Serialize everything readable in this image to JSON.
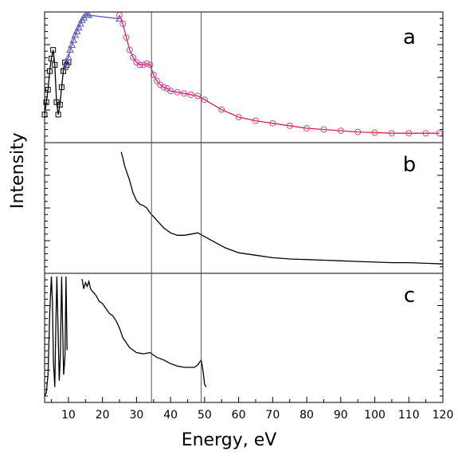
{
  "chart_data": {
    "type": "line",
    "xlabel": "Energy, eV",
    "ylabel": "Intensity",
    "xlim": [
      3,
      120
    ],
    "x_ticks": [
      10,
      20,
      30,
      40,
      50,
      60,
      70,
      80,
      90,
      100,
      110,
      120
    ],
    "reference_lines_x": [
      34.4,
      49
    ],
    "grid": false,
    "panels": [
      {
        "label": "a",
        "series": [
          {
            "marker": "square",
            "color": "#000000",
            "x": [
              3,
              3.5,
              4,
              4.5,
              5,
              5.5,
              6,
              6.5,
              7,
              7.5,
              8,
              8.5,
              9,
              9.5,
              10
            ],
            "y": [
              0.2,
              0.3,
              0.4,
              0.55,
              0.65,
              0.72,
              0.6,
              0.3,
              0.2,
              0.28,
              0.42,
              0.55,
              0.62,
              0.6,
              0.62
            ]
          },
          {
            "marker": "triangle",
            "color": "#5555bb",
            "x": [
              9,
              9.5,
              10,
              10.5,
              11,
              11.5,
              12,
              12.5,
              13,
              13.5,
              14,
              14.5,
              15,
              15.5,
              16,
              25
            ],
            "y": [
              0.58,
              0.62,
              0.66,
              0.72,
              0.76,
              0.8,
              0.84,
              0.87,
              0.9,
              0.93,
              0.96,
              0.98,
              1.0,
              1.0,
              1.0,
              0.97
            ]
          },
          {
            "marker": "circle",
            "color": "#cc44aa",
            "x": [
              25,
              26,
              27,
              28,
              29,
              30,
              31,
              32,
              33,
              34,
              35,
              36,
              37,
              38,
              39,
              40,
              42,
              44,
              46,
              48,
              50,
              55,
              60,
              65,
              70,
              75,
              80,
              85,
              90,
              95,
              100,
              105,
              110,
              115,
              119
            ],
            "y": [
              1.0,
              0.93,
              0.82,
              0.72,
              0.66,
              0.62,
              0.6,
              0.6,
              0.61,
              0.6,
              0.52,
              0.47,
              0.44,
              0.42,
              0.41,
              0.39,
              0.38,
              0.37,
              0.36,
              0.35,
              0.32,
              0.24,
              0.18,
              0.15,
              0.13,
              0.11,
              0.09,
              0.08,
              0.07,
              0.06,
              0.055,
              0.05,
              0.05,
              0.05,
              0.05
            ]
          }
        ]
      },
      {
        "label": "b",
        "series": [
          {
            "color": "#000000",
            "x": [
              25.5,
              26,
              26.5,
              27,
              28,
              29,
              30,
              31,
              32,
              33,
              34,
              35,
              36,
              37,
              38,
              39,
              40,
              42,
              44,
              46,
              48,
              50,
              52,
              54,
              56,
              58,
              60,
              65,
              70,
              75,
              80,
              85,
              90,
              95,
              100,
              105,
              110,
              115,
              120
            ],
            "y": [
              0.95,
              0.9,
              0.84,
              0.8,
              0.72,
              0.62,
              0.56,
              0.53,
              0.52,
              0.5,
              0.46,
              0.43,
              0.4,
              0.37,
              0.34,
              0.32,
              0.3,
              0.28,
              0.28,
              0.29,
              0.3,
              0.27,
              0.24,
              0.21,
              0.18,
              0.16,
              0.14,
              0.12,
              0.1,
              0.09,
              0.085,
              0.08,
              0.075,
              0.07,
              0.065,
              0.06,
              0.06,
              0.055,
              0.05
            ]
          }
        ]
      },
      {
        "label": "c",
        "series": [
          {
            "color": "#000000",
            "x": [
              3,
              3.5,
              4,
              4.5,
              5,
              5.3,
              5.6,
              6,
              6.3,
              6.6,
              7,
              7.3,
              7.6,
              8,
              8.3,
              8.6,
              9,
              9.3,
              9.6
            ],
            "y": [
              0.03,
              0.05,
              0.2,
              0.7,
              1.0,
              0.8,
              0.3,
              0.1,
              0.6,
              1.0,
              0.5,
              0.15,
              0.35,
              1.0,
              0.6,
              0.2,
              0.35,
              1.0,
              0.4
            ]
          },
          {
            "color": "#000000",
            "x": [
              14,
              14.5,
              15,
              15.5,
              16,
              16.5,
              17,
              18,
              19,
              20,
              21,
              22,
              23,
              24,
              25,
              26,
              27,
              28,
              29,
              30,
              32,
              34,
              35,
              36,
              38,
              40,
              42,
              44,
              46,
              47,
              48,
              49,
              49.5,
              50,
              50.5
            ],
            "y": [
              0.98,
              0.9,
              0.95,
              0.92,
              0.96,
              0.9,
              0.88,
              0.85,
              0.8,
              0.78,
              0.74,
              0.7,
              0.68,
              0.64,
              0.58,
              0.5,
              0.46,
              0.42,
              0.4,
              0.38,
              0.37,
              0.38,
              0.36,
              0.34,
              0.32,
              0.29,
              0.27,
              0.26,
              0.26,
              0.26,
              0.28,
              0.32,
              0.24,
              0.12,
              0.1
            ]
          }
        ]
      }
    ]
  }
}
